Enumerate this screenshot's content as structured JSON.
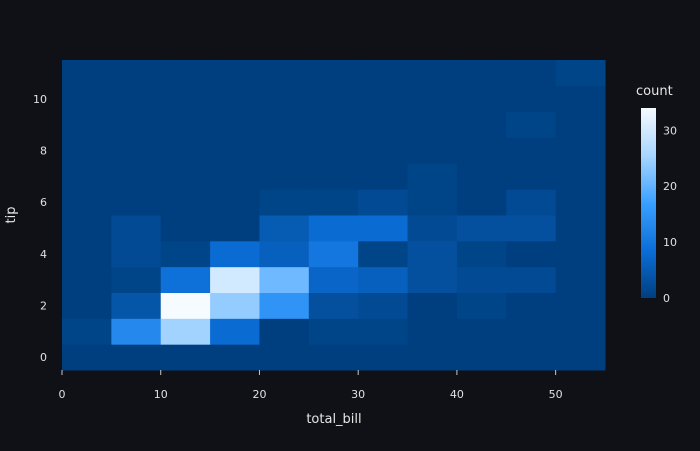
{
  "chart_data": {
    "type": "heatmap",
    "title": "",
    "xlabel": "total_bill",
    "ylabel": "tip",
    "x_bin_edges": [
      0,
      5,
      10,
      15,
      20,
      25,
      30,
      35,
      40,
      45,
      50,
      55
    ],
    "y_bin_edges": [
      -0.5,
      0.5,
      1.5,
      2.5,
      3.5,
      4.5,
      5.5,
      6.5,
      7.5,
      8.5,
      9.5,
      10.5,
      11.5
    ],
    "xlim": [
      0,
      55
    ],
    "ylim": [
      -0.5,
      11.5
    ],
    "xticks": [
      0,
      10,
      20,
      30,
      40,
      50
    ],
    "yticks": [
      0,
      2,
      4,
      6,
      8,
      10
    ],
    "z": [
      [
        0,
        0,
        0,
        0,
        0,
        0,
        0,
        0,
        0,
        0,
        0
      ],
      [
        1,
        13,
        25,
        8,
        0,
        1,
        1,
        0,
        0,
        0,
        0
      ],
      [
        0,
        4,
        34,
        24,
        15,
        3,
        2,
        0,
        1,
        0,
        0
      ],
      [
        0,
        1,
        9,
        30,
        21,
        7,
        6,
        3,
        2,
        2,
        0
      ],
      [
        0,
        2,
        1,
        8,
        6,
        10,
        1,
        3,
        1,
        0,
        0
      ],
      [
        0,
        2,
        0,
        0,
        5,
        8,
        8,
        2,
        3,
        3,
        0
      ],
      [
        0,
        0,
        0,
        0,
        1,
        1,
        2,
        1,
        0,
        2,
        0
      ],
      [
        0,
        0,
        0,
        0,
        0,
        0,
        0,
        1,
        0,
        0,
        0
      ],
      [
        0,
        0,
        0,
        0,
        0,
        0,
        0,
        0,
        0,
        0,
        0
      ],
      [
        0,
        0,
        0,
        0,
        0,
        0,
        0,
        0,
        0,
        1,
        0
      ],
      [
        0,
        0,
        0,
        0,
        0,
        0,
        0,
        0,
        0,
        0,
        0
      ],
      [
        0,
        0,
        0,
        0,
        0,
        0,
        0,
        0,
        0,
        0,
        1
      ]
    ],
    "colorbar": {
      "title": "count",
      "range": [
        0,
        34
      ],
      "ticks": [
        0,
        10,
        20,
        30
      ]
    },
    "colorscale": [
      "#003f7f",
      "#0b6ed8",
      "#3aa0ff",
      "#a8d6ff",
      "#f5fbff"
    ],
    "grid": false
  }
}
